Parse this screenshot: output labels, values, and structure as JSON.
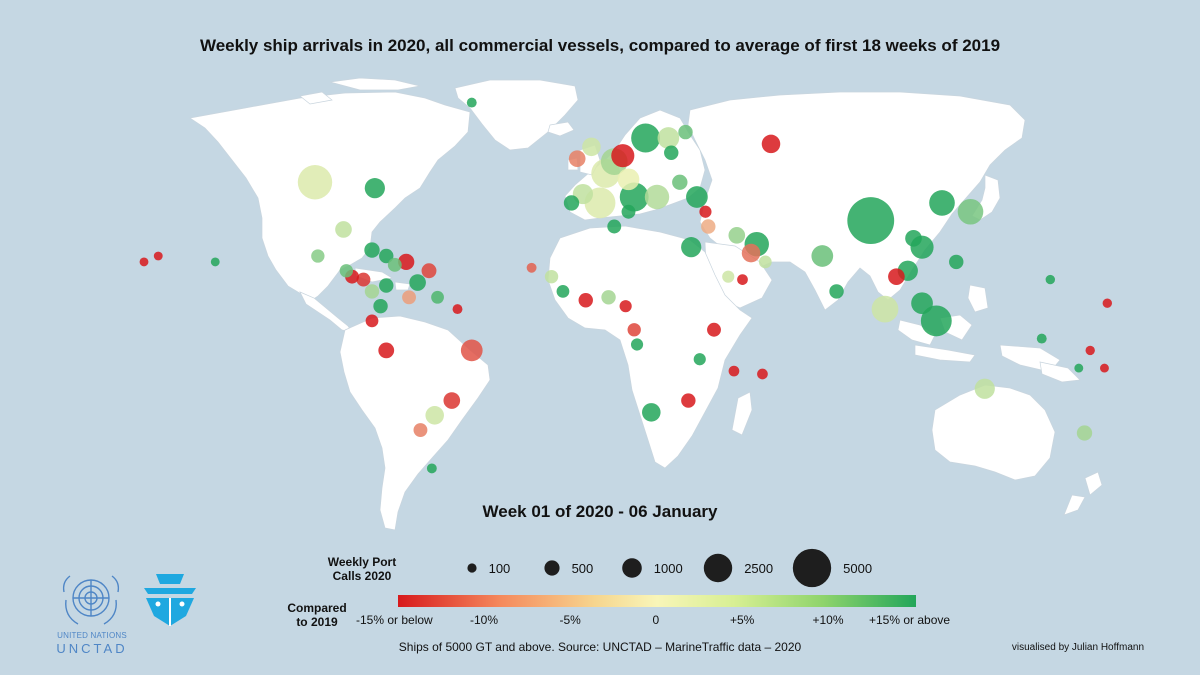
{
  "title": "Weekly ship arrivals in 2020, all commercial vessels, compared to average of first 18 weeks of 2019",
  "week_label": "Week 01 of 2020 - 06 January",
  "legend": {
    "size_title_line1": "Weekly Port",
    "size_title_line2": "Calls 2020",
    "sizes": [
      {
        "label": "100",
        "value": 100
      },
      {
        "label": "500",
        "value": 500
      },
      {
        "label": "1000",
        "value": 1000
      },
      {
        "label": "2500",
        "value": 2500
      },
      {
        "label": "5000",
        "value": 5000
      }
    ],
    "color_title_line1": "Compared",
    "color_title_line2": "to 2019",
    "color_ticks": [
      "-15% or below",
      "-10%",
      "-5%",
      "0",
      "+5%",
      "+10%",
      "+15% or above"
    ],
    "color_scale": {
      "low": "#d7191c",
      "mid": "#f8f5b8",
      "high": "#23a65a"
    }
  },
  "source": "Ships of 5000 GT and above. Source: UNCTAD – MarineTraffic data – 2020",
  "credit": "visualised by Julian Hoffmann",
  "logos": {
    "un_line1": "UNITED NATIONS",
    "un_line2": "UNCTAD",
    "emblem_icon": "un-emblem-icon",
    "ship_icon": "ship-bow-icon"
  },
  "colors": {
    "ocean": "#c5d7e3",
    "land": "#ffffff",
    "border": "#c9d5de"
  },
  "ports": [
    {
      "lon": -100,
      "lat": 45,
      "calls": 900,
      "change": 2
    },
    {
      "lon": -79,
      "lat": 43,
      "calls": 250,
      "change": 15
    },
    {
      "lon": -90,
      "lat": 29,
      "calls": 150,
      "change": 4
    },
    {
      "lon": -99,
      "lat": 20,
      "calls": 80,
      "change": 8
    },
    {
      "lon": -45,
      "lat": 72,
      "calls": 30,
      "change": 15
    },
    {
      "lon": -80,
      "lat": 22,
      "calls": 120,
      "change": 15
    },
    {
      "lon": -75,
      "lat": 20,
      "calls": 100,
      "change": 15
    },
    {
      "lon": -68,
      "lat": 18,
      "calls": 140,
      "change": -15
    },
    {
      "lon": -72,
      "lat": 17,
      "calls": 90,
      "change": 10
    },
    {
      "lon": -60,
      "lat": 15,
      "calls": 110,
      "change": -12
    },
    {
      "lon": -64,
      "lat": 11,
      "calls": 150,
      "change": 15
    },
    {
      "lon": -75,
      "lat": 10,
      "calls": 100,
      "change": 15
    },
    {
      "lon": -83,
      "lat": 12,
      "calls": 90,
      "change": -13
    },
    {
      "lon": -89,
      "lat": 15,
      "calls": 80,
      "change": 10
    },
    {
      "lon": -87,
      "lat": 13,
      "calls": 90,
      "change": -15
    },
    {
      "lon": -80,
      "lat": 8,
      "calls": 100,
      "change": 6
    },
    {
      "lon": -77,
      "lat": 3,
      "calls": 100,
      "change": 15
    },
    {
      "lon": -80,
      "lat": -2,
      "calls": 70,
      "change": -15
    },
    {
      "lon": -75,
      "lat": -12,
      "calls": 130,
      "change": -15
    },
    {
      "lon": -67,
      "lat": 6,
      "calls": 90,
      "change": -6
    },
    {
      "lon": -57,
      "lat": 6,
      "calls": 70,
      "change": 12
    },
    {
      "lon": -50,
      "lat": 2,
      "calls": 30,
      "change": -15
    },
    {
      "lon": -45,
      "lat": -12,
      "calls": 300,
      "change": -11
    },
    {
      "lon": -52,
      "lat": -29,
      "calls": 150,
      "change": -13
    },
    {
      "lon": -58,
      "lat": -34,
      "calls": 200,
      "change": 3
    },
    {
      "lon": -63,
      "lat": -39,
      "calls": 90,
      "change": -8
    },
    {
      "lon": -59,
      "lat": -52,
      "calls": 30,
      "change": 15
    },
    {
      "lon": -155,
      "lat": 20,
      "calls": 20,
      "change": -15
    },
    {
      "lon": -160,
      "lat": 18,
      "calls": 20,
      "change": -15
    },
    {
      "lon": -135,
      "lat": 18,
      "calls": 20,
      "change": 15
    },
    {
      "lon": -10,
      "lat": 38,
      "calls": 120,
      "change": 15
    },
    {
      "lon": -6,
      "lat": 41,
      "calls": 250,
      "change": 4
    },
    {
      "lon": 0,
      "lat": 38,
      "calls": 700,
      "change": 2
    },
    {
      "lon": 2,
      "lat": 48,
      "calls": 600,
      "change": 2
    },
    {
      "lon": 5,
      "lat": 52,
      "calls": 500,
      "change": 6
    },
    {
      "lon": 8,
      "lat": 54,
      "calls": 350,
      "change": -15
    },
    {
      "lon": 10,
      "lat": 46,
      "calls": 300,
      "change": 1
    },
    {
      "lon": 12,
      "lat": 40,
      "calls": 600,
      "change": 15
    },
    {
      "lon": 16,
      "lat": 60,
      "calls": 600,
      "change": 15
    },
    {
      "lon": 24,
      "lat": 60,
      "calls": 300,
      "change": 4
    },
    {
      "lon": 30,
      "lat": 62,
      "calls": 100,
      "change": 10
    },
    {
      "lon": 25,
      "lat": 55,
      "calls": 100,
      "change": 15
    },
    {
      "lon": -8,
      "lat": 53,
      "calls": 150,
      "change": -8
    },
    {
      "lon": -3,
      "lat": 57,
      "calls": 200,
      "change": 3
    },
    {
      "lon": 20,
      "lat": 40,
      "calls": 400,
      "change": 5
    },
    {
      "lon": 28,
      "lat": 45,
      "calls": 120,
      "change": 10
    },
    {
      "lon": 34,
      "lat": 40,
      "calls": 300,
      "change": 15
    },
    {
      "lon": 37,
      "lat": 35,
      "calls": 60,
      "change": -15
    },
    {
      "lon": 38,
      "lat": 30,
      "calls": 100,
      "change": -5
    },
    {
      "lon": 32,
      "lat": 23,
      "calls": 250,
      "change": 15
    },
    {
      "lon": 48,
      "lat": 27,
      "calls": 150,
      "change": 7
    },
    {
      "lon": 55,
      "lat": 24,
      "calls": 400,
      "change": 15
    },
    {
      "lon": 53,
      "lat": 21,
      "calls": 200,
      "change": -9
    },
    {
      "lon": 58,
      "lat": 18,
      "calls": 70,
      "change": 4
    },
    {
      "lon": 50,
      "lat": 12,
      "calls": 40,
      "change": -15
    },
    {
      "lon": 78,
      "lat": 20,
      "calls": 300,
      "change": 10
    },
    {
      "lon": 83,
      "lat": 8,
      "calls": 100,
      "change": 15
    },
    {
      "lon": 95,
      "lat": 32,
      "calls": 1800,
      "change": 15
    },
    {
      "lon": 113,
      "lat": 23,
      "calls": 350,
      "change": 15
    },
    {
      "lon": 108,
      "lat": 15,
      "calls": 250,
      "change": 15
    },
    {
      "lon": 104,
      "lat": 13,
      "calls": 150,
      "change": -15
    },
    {
      "lon": 110,
      "lat": 26,
      "calls": 150,
      "change": 15
    },
    {
      "lon": 100,
      "lat": 2,
      "calls": 500,
      "change": 3
    },
    {
      "lon": 113,
      "lat": 4,
      "calls": 300,
      "change": 15
    },
    {
      "lon": 118,
      "lat": -2,
      "calls": 700,
      "change": 15
    },
    {
      "lon": 120,
      "lat": 38,
      "calls": 450,
      "change": 15
    },
    {
      "lon": 130,
      "lat": 35,
      "calls": 450,
      "change": 9
    },
    {
      "lon": 125,
      "lat": 18,
      "calls": 100,
      "change": 15
    },
    {
      "lon": 60,
      "lat": 58,
      "calls": 200,
      "change": -15
    },
    {
      "lon": 135,
      "lat": -25,
      "calls": 250,
      "change": 4
    },
    {
      "lon": 170,
      "lat": -40,
      "calls": 120,
      "change": 6
    },
    {
      "lon": 155,
      "lat": -8,
      "calls": 30,
      "change": 15
    },
    {
      "lon": 172,
      "lat": -12,
      "calls": 25,
      "change": -15
    },
    {
      "lon": 168,
      "lat": -18,
      "calls": 20,
      "change": 15
    },
    {
      "lon": 177,
      "lat": -18,
      "calls": 20,
      "change": -15
    },
    {
      "lon": 158,
      "lat": 12,
      "calls": 25,
      "change": 15
    },
    {
      "lon": 178,
      "lat": 4,
      "calls": 25,
      "change": -15
    },
    {
      "lon": -17,
      "lat": 13,
      "calls": 80,
      "change": 4
    },
    {
      "lon": -13,
      "lat": 8,
      "calls": 70,
      "change": 15
    },
    {
      "lon": -5,
      "lat": 5,
      "calls": 100,
      "change": -15
    },
    {
      "lon": 3,
      "lat": 6,
      "calls": 100,
      "change": 6
    },
    {
      "lon": 9,
      "lat": 3,
      "calls": 60,
      "change": -15
    },
    {
      "lon": 12,
      "lat": -5,
      "calls": 80,
      "change": -12
    },
    {
      "lon": 13,
      "lat": -10,
      "calls": 60,
      "change": 15
    },
    {
      "lon": 18,
      "lat": -33,
      "calls": 200,
      "change": 15
    },
    {
      "lon": 31,
      "lat": -29,
      "calls": 100,
      "change": -15
    },
    {
      "lon": 40,
      "lat": -5,
      "calls": 90,
      "change": -15
    },
    {
      "lon": 35,
      "lat": -15,
      "calls": 60,
      "change": 15
    },
    {
      "lon": 47,
      "lat": -19,
      "calls": 40,
      "change": -15
    },
    {
      "lon": 57,
      "lat": -20,
      "calls": 40,
      "change": -15
    },
    {
      "lon": 10,
      "lat": 35,
      "calls": 90,
      "change": 15
    },
    {
      "lon": 5,
      "lat": 30,
      "calls": 90,
      "change": 15
    },
    {
      "lon": 45,
      "lat": 13,
      "calls": 60,
      "change": 3
    },
    {
      "lon": -24,
      "lat": 16,
      "calls": 30,
      "change": -10
    }
  ]
}
